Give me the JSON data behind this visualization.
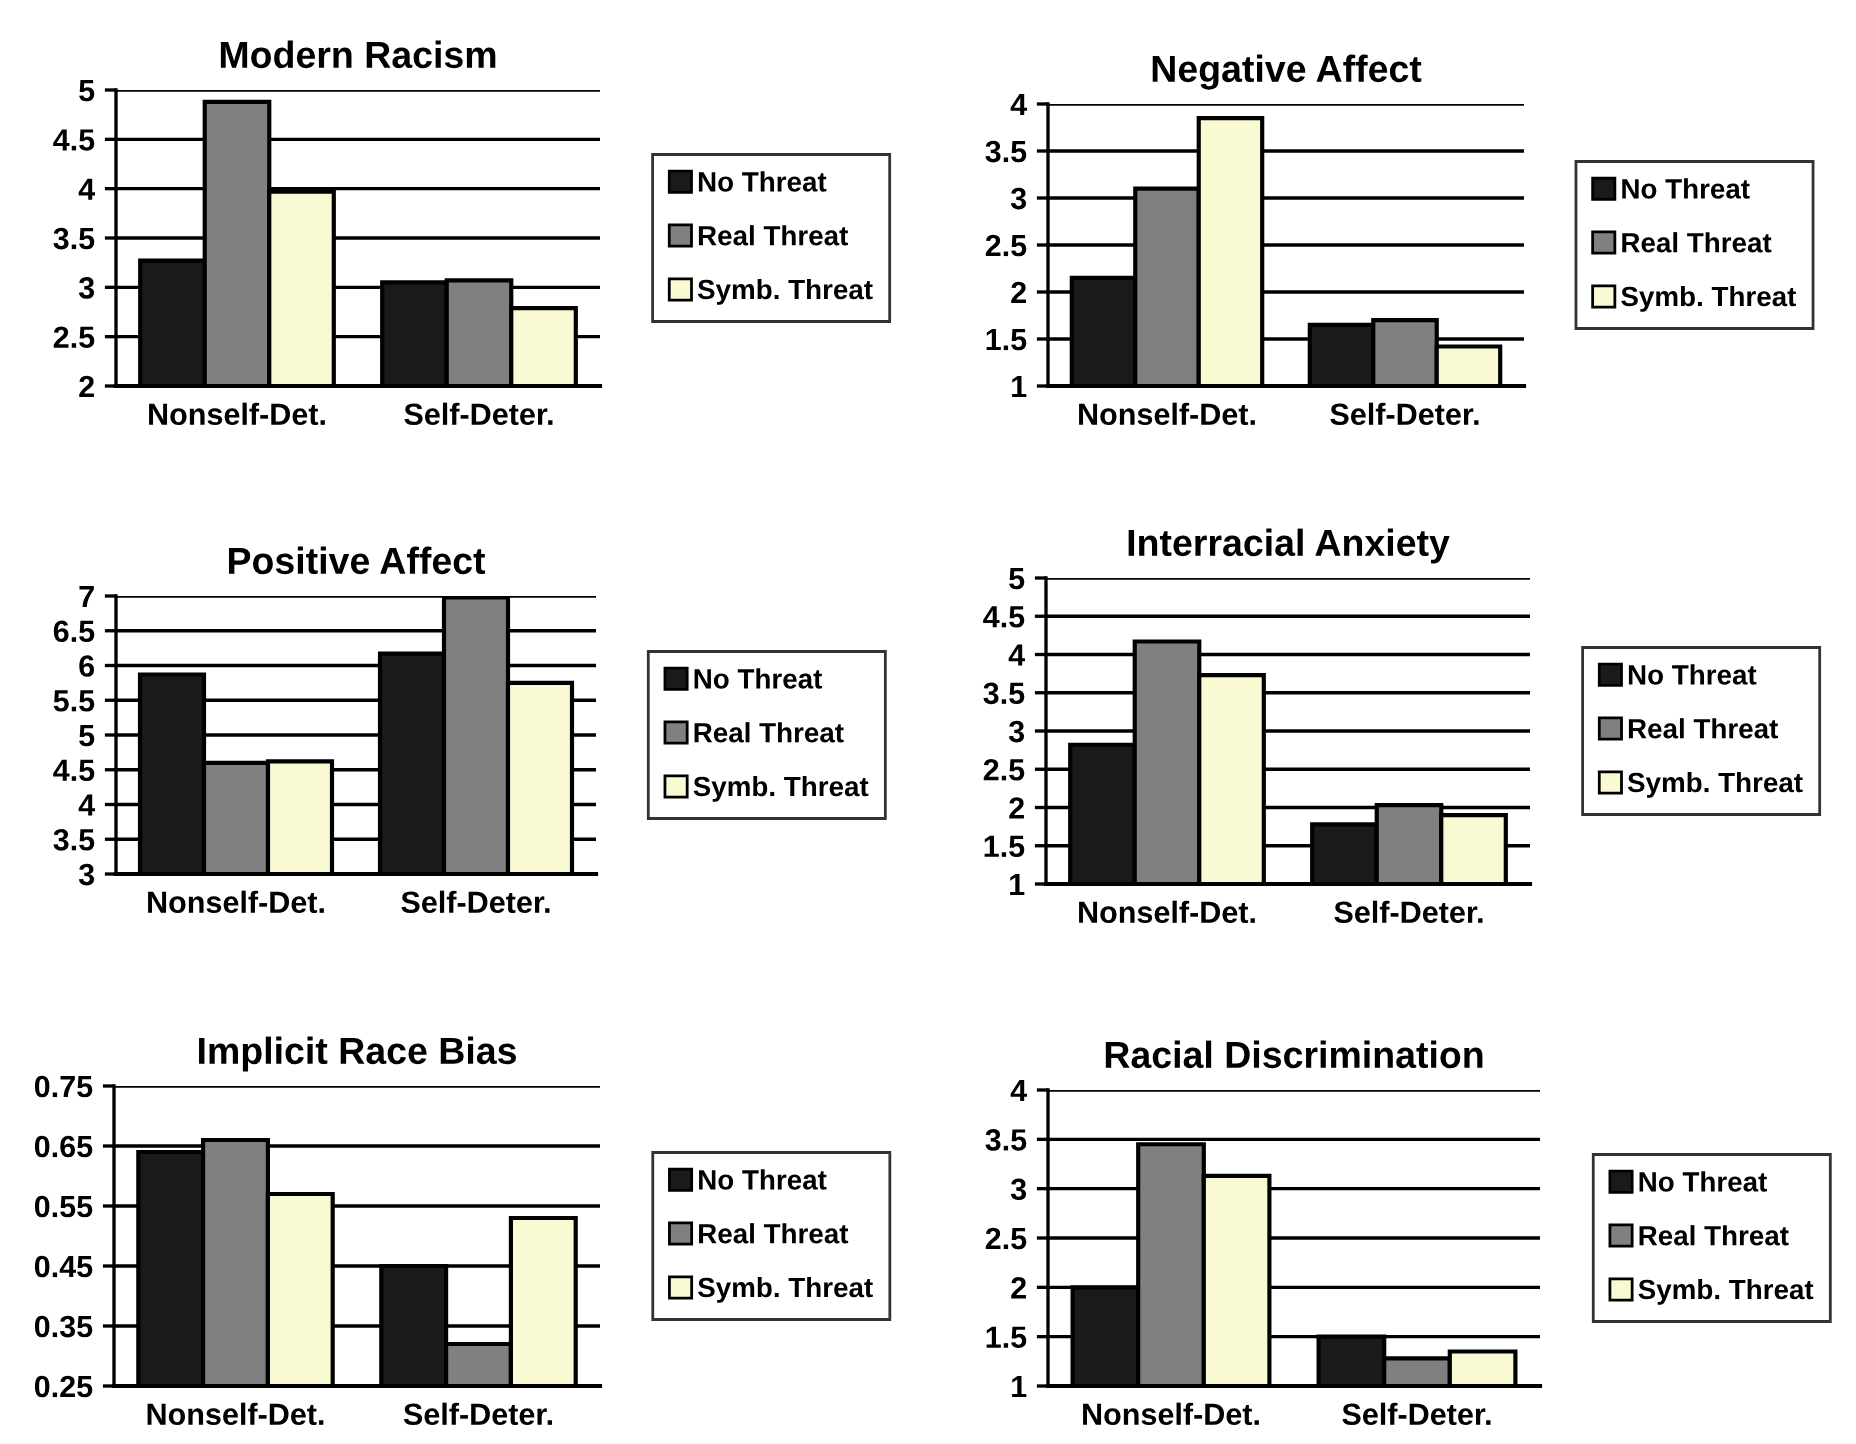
{
  "chart_data": [
    {
      "type": "bar",
      "title": "Modern Racism",
      "categories": [
        "Nonself-Det.",
        "Self-Deter."
      ],
      "series": [
        {
          "name": "No Threat",
          "color": "#1a1a1a",
          "values": [
            3.27,
            3.05
          ]
        },
        {
          "name": "Real Threat",
          "color": "#808080",
          "values": [
            4.88,
            3.07
          ]
        },
        {
          "name": "Symb. Threat",
          "color": "#fafad2",
          "values": [
            3.97,
            2.79
          ]
        }
      ],
      "ylim": [
        2,
        5
      ],
      "yticks": [
        2,
        2.5,
        3,
        3.5,
        4,
        4.5,
        5
      ],
      "grid": "y",
      "legend": "right"
    },
    {
      "type": "bar",
      "title": "Negative Affect",
      "categories": [
        "Nonself-Det.",
        "Self-Deter."
      ],
      "series": [
        {
          "name": "No Threat",
          "color": "#1a1a1a",
          "values": [
            2.15,
            1.65
          ]
        },
        {
          "name": "Real Threat",
          "color": "#808080",
          "values": [
            3.1,
            1.7
          ]
        },
        {
          "name": "Symb. Threat",
          "color": "#fafad2",
          "values": [
            3.85,
            1.42
          ]
        }
      ],
      "ylim": [
        1,
        4
      ],
      "yticks": [
        1,
        1.5,
        2,
        2.5,
        3,
        3.5,
        4
      ],
      "grid": "y",
      "legend": "right"
    },
    {
      "type": "bar",
      "title": "Positive Affect",
      "categories": [
        "Nonself-Det.",
        "Self-Deter."
      ],
      "series": [
        {
          "name": "No Threat",
          "color": "#1a1a1a",
          "values": [
            5.87,
            6.17
          ]
        },
        {
          "name": "Real Threat",
          "color": "#808080",
          "values": [
            4.6,
            6.98
          ]
        },
        {
          "name": "Symb. Threat",
          "color": "#fafad2",
          "values": [
            4.62,
            5.75
          ]
        }
      ],
      "ylim": [
        3,
        7
      ],
      "yticks": [
        3,
        3.5,
        4,
        4.5,
        5,
        5.5,
        6,
        6.5,
        7
      ],
      "grid": "y",
      "legend": "right"
    },
    {
      "type": "bar",
      "title": "Interracial Anxiety",
      "categories": [
        "Nonself-Det.",
        "Self-Deter."
      ],
      "series": [
        {
          "name": "No Threat",
          "color": "#1a1a1a",
          "values": [
            2.82,
            1.78
          ]
        },
        {
          "name": "Real Threat",
          "color": "#808080",
          "values": [
            4.17,
            2.03
          ]
        },
        {
          "name": "Symb. Threat",
          "color": "#fafad2",
          "values": [
            3.73,
            1.9
          ]
        }
      ],
      "ylim": [
        1,
        5
      ],
      "yticks": [
        1,
        1.5,
        2,
        2.5,
        3,
        3.5,
        4,
        4.5,
        5
      ],
      "grid": "y",
      "legend": "right"
    },
    {
      "type": "bar",
      "title": "Implicit Race Bias",
      "categories": [
        "Nonself-Det.",
        "Self-Deter."
      ],
      "series": [
        {
          "name": "No Threat",
          "color": "#1a1a1a",
          "values": [
            0.64,
            0.45
          ]
        },
        {
          "name": "Real Threat",
          "color": "#808080",
          "values": [
            0.66,
            0.32
          ]
        },
        {
          "name": "Symb. Threat",
          "color": "#fafad2",
          "values": [
            0.57,
            0.53
          ]
        }
      ],
      "ylim": [
        0.25,
        0.75
      ],
      "yticks": [
        0.25,
        0.35,
        0.45,
        0.55,
        0.65,
        0.75
      ],
      "grid": "y",
      "legend": "right"
    },
    {
      "type": "bar",
      "title": "Racial Discrimination",
      "categories": [
        "Nonself-Det.",
        "Self-Deter."
      ],
      "series": [
        {
          "name": "No Threat",
          "color": "#1a1a1a",
          "values": [
            2.0,
            1.5
          ]
        },
        {
          "name": "Real Threat",
          "color": "#808080",
          "values": [
            3.45,
            1.28
          ]
        },
        {
          "name": "Symb. Threat",
          "color": "#fafad2",
          "values": [
            3.13,
            1.35
          ]
        }
      ],
      "ylim": [
        1,
        4
      ],
      "yticks": [
        1,
        1.5,
        2,
        2.5,
        3,
        3.5,
        4
      ],
      "grid": "y",
      "legend": "right"
    }
  ]
}
